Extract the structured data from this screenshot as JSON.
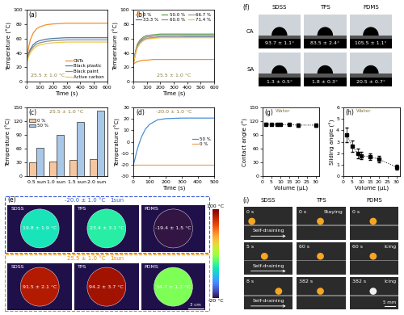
{
  "chart_data": [
    {
      "type": "line",
      "panel_label": "(a)",
      "annotations": [
        "25.5 ± 1.0 °C"
      ],
      "xlabel": "Time (s)",
      "ylabel": "Temperature (°C)",
      "x": [
        0,
        10,
        20,
        30,
        50,
        75,
        100,
        150,
        200,
        300,
        400,
        500,
        600
      ],
      "series": [
        {
          "name": "CNTs",
          "color": "#f28e2b",
          "values": [
            25,
            38,
            50,
            58,
            67,
            73,
            76,
            79,
            80,
            81,
            81,
            81,
            81
          ]
        },
        {
          "name": "Black plastic",
          "color": "#4e79a7",
          "values": [
            25,
            33,
            40,
            45,
            51,
            55,
            57,
            59,
            60,
            61,
            61,
            61,
            61
          ]
        },
        {
          "name": "Black paint",
          "color": "#8c8c8c",
          "values": [
            25,
            32,
            38,
            43,
            48,
            52,
            54,
            56,
            57,
            58,
            58,
            58,
            58
          ]
        },
        {
          "name": "Active carbon",
          "color": "#edc948",
          "values": [
            25,
            31,
            36,
            40,
            45,
            49,
            51,
            53,
            54,
            55,
            55,
            55,
            55
          ]
        }
      ],
      "xlim": [
        0,
        600
      ],
      "xticks": [
        0,
        100,
        200,
        300,
        400,
        500,
        600
      ],
      "ylim": [
        0,
        100
      ],
      "yticks": [
        0,
        20,
        40,
        60,
        80,
        100
      ],
      "legend": "lower right"
    },
    {
      "type": "line",
      "panel_label": "(b)",
      "annotations": [
        "25.5 ± 1.0 °C"
      ],
      "xlabel": "Time (s)",
      "ylabel": "Temperature (°C)",
      "x": [
        0,
        10,
        20,
        30,
        50,
        75,
        100,
        150,
        200,
        300,
        400,
        500,
        600
      ],
      "series": [
        {
          "name": "0 %",
          "color": "#f28e2b",
          "values": [
            25,
            26,
            27,
            28,
            29,
            30,
            30,
            31,
            31,
            31,
            31,
            31,
            31
          ]
        },
        {
          "name": "33.3 %",
          "color": "#4e79a7",
          "values": [
            25,
            35,
            43,
            49,
            55,
            58,
            60,
            61,
            62,
            62,
            62,
            62,
            62
          ]
        },
        {
          "name": "50.0 %",
          "color": "#59a14f",
          "values": [
            25,
            36,
            45,
            52,
            58,
            62,
            64,
            65,
            66,
            66,
            66,
            66,
            66
          ]
        },
        {
          "name": "60.0 %",
          "color": "#b07aa1",
          "values": [
            25,
            35,
            44,
            50,
            56,
            60,
            62,
            63,
            64,
            64,
            64,
            64,
            64
          ]
        },
        {
          "name": "66.7 %",
          "color": "#9c9c9c",
          "values": [
            25,
            34,
            42,
            48,
            54,
            58,
            60,
            61,
            62,
            62,
            63,
            63,
            63
          ]
        },
        {
          "name": "71.4 %",
          "color": "#edc948",
          "values": [
            25,
            33,
            41,
            47,
            53,
            57,
            59,
            60,
            61,
            61,
            61,
            61,
            61
          ]
        }
      ],
      "xlim": [
        0,
        600
      ],
      "xticks": [
        0,
        100,
        200,
        300,
        400,
        500,
        600
      ],
      "ylim": [
        0,
        100
      ],
      "yticks": [
        0,
        20,
        40,
        60,
        80,
        100
      ],
      "legend": "upper right"
    },
    {
      "type": "bar",
      "panel_label": "(c)",
      "annotations": [
        "25.5 ± 1.0 °C"
      ],
      "ylabel": "Temperature (°C)",
      "categories": [
        "0.5 sun",
        "1.0 sun",
        "1.5 sun",
        "2.0 sun"
      ],
      "series": [
        {
          "name": "0 %",
          "color": "#f4c7a1",
          "values": [
            30,
            32,
            35,
            38
          ]
        },
        {
          "name": "50 %",
          "color": "#a9c8e8",
          "values": [
            62,
            90,
            118,
            143
          ]
        }
      ],
      "ylim": [
        0,
        150
      ],
      "yticks": [
        0,
        30,
        60,
        90,
        120,
        150
      ],
      "legend": "upper left"
    },
    {
      "type": "line",
      "panel_label": "(d)",
      "annotations": [
        "-20.0 ± 1.0 °C"
      ],
      "xlabel": "Time (s)",
      "ylabel": "Temperature (°C)",
      "x": [
        0,
        10,
        20,
        30,
        50,
        75,
        100,
        150,
        200,
        300,
        400,
        500
      ],
      "series": [
        {
          "name": "50 %",
          "color": "#4a90d9",
          "values": [
            -20,
            -15,
            -9,
            -4,
            4,
            11,
            15,
            19,
            20,
            20.5,
            20.5,
            20.5
          ]
        },
        {
          "name": "0 %",
          "color": "#f5a25d",
          "values": [
            -20,
            -20,
            -20,
            -20,
            -20,
            -20,
            -20,
            -20,
            -20,
            -20,
            -20,
            -20
          ]
        }
      ],
      "xlim": [
        0,
        500
      ],
      "xticks": [
        0,
        100,
        200,
        300,
        400,
        500
      ],
      "ylim": [
        -30,
        30
      ],
      "yticks": [
        -30,
        -20,
        -10,
        0,
        10,
        20,
        30
      ],
      "legend": "center right"
    },
    {
      "type": "line",
      "panel_label": "(g)",
      "annotations": [
        "Water"
      ],
      "xlabel": "Volume (μL)",
      "ylabel": "Contact angle (°)",
      "x": [
        2,
        5,
        8,
        10,
        15,
        20,
        30
      ],
      "series": [
        {
          "color": "#000000",
          "marker": "square",
          "line_style": "dotted",
          "values": [
            113,
            113,
            112,
            112,
            112,
            111,
            111
          ],
          "errors": [
            3,
            2,
            2,
            2,
            2,
            3,
            4
          ]
        }
      ],
      "xlim": [
        0,
        32
      ],
      "xticks": [
        0,
        5,
        10,
        15,
        20,
        25,
        30
      ],
      "ylim": [
        0,
        150
      ],
      "yticks": [
        0,
        30,
        60,
        90,
        120,
        150
      ]
    },
    {
      "type": "line",
      "panel_label": "(h)",
      "annotations": [
        "Water"
      ],
      "xlabel": "Volume (μL)",
      "ylabel": "Sliding angle (°)",
      "x": [
        2,
        5,
        8,
        10,
        15,
        20,
        30
      ],
      "series": [
        {
          "color": "#000000",
          "marker": "square",
          "line_style": "dotted",
          "values": [
            3.6,
            2.6,
            2.0,
            1.8,
            1.7,
            1.5,
            0.8
          ],
          "errors": [
            0.6,
            0.5,
            0.4,
            0.3,
            0.3,
            0.3,
            0.2
          ]
        }
      ],
      "xlim": [
        0,
        32
      ],
      "xticks": [
        0,
        5,
        10,
        15,
        20,
        25,
        30
      ],
      "ylim": [
        0,
        6
      ],
      "yticks": [
        0,
        1,
        2,
        3,
        4,
        5,
        6
      ]
    }
  ],
  "panels": {
    "e": {
      "panel_label": "(e)",
      "rows": [
        {
          "condition": "-20.0 ± 1.0 °C",
          "light": "1sun",
          "color": "#3b5bdb",
          "items": [
            {
              "sample": "SDSS",
              "value": 19.8,
              "label": "19.8 ± 1.9 °C"
            },
            {
              "sample": "TPS",
              "value": 23.4,
              "label": "23.4 ± 3.1 °C"
            },
            {
              "sample": "PDMS",
              "value": -19.4,
              "label": "-19.4 ± 1.5 °C"
            }
          ]
        },
        {
          "condition": "25.5 ± 1.0 °C",
          "light": "1sun",
          "color": "#f08c00",
          "items": [
            {
              "sample": "SDSS",
              "value": 91.5,
              "label": "91.5 ± 2.1 °C"
            },
            {
              "sample": "TPS",
              "value": 94.2,
              "label": "94.2 ± 3.7 °C"
            },
            {
              "sample": "PDMS",
              "value": 34.7,
              "label": "34.7 ± 1.2 °C"
            }
          ]
        }
      ],
      "scale_bar": "3 cm",
      "colorbar": {
        "range": [
          -20,
          100
        ],
        "ticks": [
          {
            "value": 100,
            "label": "100 °C"
          },
          {
            "value": -20,
            "label": "-20 °C"
          }
        ]
      }
    },
    "f": {
      "panel_label": "(f)",
      "samples": [
        "SDSS",
        "TPS",
        "PDMS"
      ],
      "rows": [
        {
          "label": "CA",
          "values": [
            "93.7 ± 1.1°",
            "83.5 ± 2.4°",
            "105.5 ± 1.1°"
          ]
        },
        {
          "label": "SA",
          "values": [
            "1.3 ± 0.5°",
            "1.8 ± 0.3°",
            "20.5 ± 0.7°"
          ]
        }
      ]
    },
    "i": {
      "panel_label": "(i)",
      "scale_bar": "5 mm",
      "columns": [
        {
          "sample": "SDSS",
          "colors": [
            "#f5a623",
            "#f5a623",
            "#f5a623"
          ],
          "frames": [
            {
              "time": "0 s",
              "note": "Self-draining"
            },
            {
              "time": "5 s",
              "note": "Self-draining"
            },
            {
              "time": "8 s",
              "note": "Self-draining"
            }
          ]
        },
        {
          "sample": "TPS",
          "colors": [
            "#f5a623",
            "#f5a623",
            "#f5a623"
          ],
          "frames": [
            {
              "time": "0 s",
              "note": "Staying"
            },
            {
              "time": "60 s"
            },
            {
              "time": "382 s"
            }
          ]
        },
        {
          "sample": "PDMS",
          "colors": [
            "#f5a623",
            "#f5a623",
            "#f0f0f0"
          ],
          "frames": [
            {
              "time": "0 s"
            },
            {
              "time": "60 s",
              "note": "Icing"
            },
            {
              "time": "382 s",
              "note": "Icing"
            }
          ]
        }
      ]
    }
  }
}
